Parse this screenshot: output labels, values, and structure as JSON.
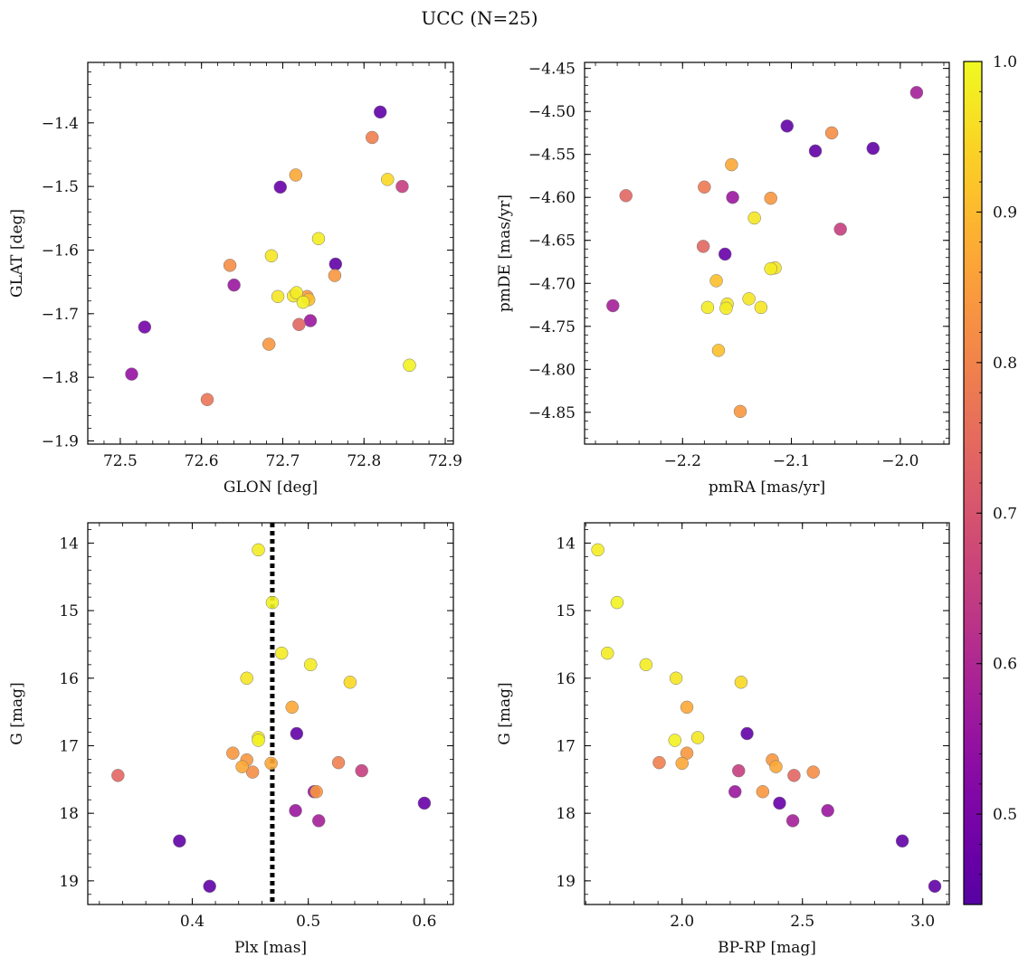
{
  "figure": {
    "title": "UCC (N=25)"
  },
  "colorbar": {
    "range": [
      0.44,
      1.0
    ],
    "ticks": [
      0.5,
      0.6,
      0.7,
      0.8,
      0.9,
      1.0
    ],
    "tick_labels": [
      "0.5",
      "0.6",
      "0.7",
      "0.8",
      "0.9",
      "1.0"
    ],
    "colormap": "plasma"
  },
  "chart_data": [
    {
      "type": "scatter",
      "id": "glon-glat",
      "xlabel": "GLON [deg]",
      "ylabel": "GLAT [deg]",
      "xlim": [
        72.46,
        72.91
      ],
      "ylim": [
        -1.905,
        -1.305
      ],
      "y_inverted": false,
      "xticks": [
        72.5,
        72.6,
        72.7,
        72.8,
        72.9
      ],
      "yticks": [
        -1.9,
        -1.8,
        -1.7,
        -1.6,
        -1.5,
        -1.4
      ],
      "xtick_labels": [
        "72.5",
        "72.6",
        "72.7",
        "72.8",
        "72.9"
      ],
      "ytick_labels": [
        "−1.9",
        "−1.8",
        "−1.7",
        "−1.6",
        "−1.5",
        "−1.4"
      ],
      "points": [
        {
          "x": 72.82,
          "y": -1.383,
          "c": 0.46
        },
        {
          "x": 72.81,
          "y": -1.423,
          "c": 0.79
        },
        {
          "x": 72.716,
          "y": -1.482,
          "c": 0.87
        },
        {
          "x": 72.829,
          "y": -1.489,
          "c": 0.95
        },
        {
          "x": 72.697,
          "y": -1.501,
          "c": 0.47
        },
        {
          "x": 72.847,
          "y": -1.5,
          "c": 0.65
        },
        {
          "x": 72.744,
          "y": -1.582,
          "c": 0.98
        },
        {
          "x": 72.686,
          "y": -1.609,
          "c": 0.97
        },
        {
          "x": 72.635,
          "y": -1.624,
          "c": 0.82
        },
        {
          "x": 72.765,
          "y": -1.622,
          "c": 0.46
        },
        {
          "x": 72.764,
          "y": -1.64,
          "c": 0.84
        },
        {
          "x": 72.64,
          "y": -1.655,
          "c": 0.56
        },
        {
          "x": 72.717,
          "y": -1.667,
          "c": 0.98
        },
        {
          "x": 72.694,
          "y": -1.673,
          "c": 0.97
        },
        {
          "x": 72.713,
          "y": -1.672,
          "c": 0.97
        },
        {
          "x": 72.73,
          "y": -1.673,
          "c": 0.84
        },
        {
          "x": 72.732,
          "y": -1.678,
          "c": 0.91
        },
        {
          "x": 72.725,
          "y": -1.682,
          "c": 0.99
        },
        {
          "x": 72.734,
          "y": -1.711,
          "c": 0.56
        },
        {
          "x": 72.72,
          "y": -1.717,
          "c": 0.74
        },
        {
          "x": 72.53,
          "y": -1.721,
          "c": 0.49
        },
        {
          "x": 72.683,
          "y": -1.748,
          "c": 0.84
        },
        {
          "x": 72.856,
          "y": -1.781,
          "c": 0.99
        },
        {
          "x": 72.514,
          "y": -1.795,
          "c": 0.55
        },
        {
          "x": 72.607,
          "y": -1.835,
          "c": 0.77
        }
      ]
    },
    {
      "type": "scatter",
      "id": "pmra-pmde",
      "xlabel": "pmRA [mas/yr]",
      "ylabel": "pmDE [mas/yr]",
      "xlim": [
        -2.29,
        -1.955
      ],
      "ylim": [
        -4.887,
        -4.443
      ],
      "y_inverted": false,
      "xticks": [
        -2.2,
        -2.1,
        -2.0
      ],
      "yticks": [
        -4.85,
        -4.8,
        -4.75,
        -4.7,
        -4.65,
        -4.6,
        -4.55,
        -4.5,
        -4.45
      ],
      "xtick_labels": [
        "−2.2",
        "−2.1",
        "−2.0"
      ],
      "ytick_labels": [
        "−4.85",
        "−4.80",
        "−4.75",
        "−4.70",
        "−4.65",
        "−4.60",
        "−4.55",
        "−4.50",
        "−4.45"
      ],
      "points": [
        {
          "x": -1.985,
          "y": -4.478,
          "c": 0.58
        },
        {
          "x": -2.104,
          "y": -4.517,
          "c": 0.46
        },
        {
          "x": -2.063,
          "y": -4.525,
          "c": 0.82
        },
        {
          "x": -2.025,
          "y": -4.543,
          "c": 0.46
        },
        {
          "x": -2.078,
          "y": -4.546,
          "c": 0.46
        },
        {
          "x": -2.155,
          "y": -4.562,
          "c": 0.87
        },
        {
          "x": -2.18,
          "y": -4.588,
          "c": 0.78
        },
        {
          "x": -2.252,
          "y": -4.598,
          "c": 0.74
        },
        {
          "x": -2.154,
          "y": -4.6,
          "c": 0.56
        },
        {
          "x": -2.119,
          "y": -4.601,
          "c": 0.84
        },
        {
          "x": -2.134,
          "y": -4.624,
          "c": 0.97
        },
        {
          "x": -2.055,
          "y": -4.637,
          "c": 0.65
        },
        {
          "x": -2.181,
          "y": -4.657,
          "c": 0.74
        },
        {
          "x": -2.161,
          "y": -4.666,
          "c": 0.47
        },
        {
          "x": -2.115,
          "y": -4.682,
          "c": 0.97
        },
        {
          "x": -2.119,
          "y": -4.683,
          "c": 0.98
        },
        {
          "x": -2.169,
          "y": -4.697,
          "c": 0.91
        },
        {
          "x": -2.139,
          "y": -4.718,
          "c": 0.97
        },
        {
          "x": -2.159,
          "y": -4.724,
          "c": 0.97
        },
        {
          "x": -2.264,
          "y": -4.726,
          "c": 0.58
        },
        {
          "x": -2.177,
          "y": -4.728,
          "c": 0.98
        },
        {
          "x": -2.128,
          "y": -4.728,
          "c": 0.97
        },
        {
          "x": -2.16,
          "y": -4.729,
          "c": 0.98
        },
        {
          "x": -2.167,
          "y": -4.778,
          "c": 0.91
        },
        {
          "x": -2.147,
          "y": -4.849,
          "c": 0.84
        }
      ]
    },
    {
      "type": "scatter",
      "id": "plx-g",
      "xlabel": "Plx [mas]",
      "ylabel": "G [mag]",
      "xlim": [
        0.31,
        0.625
      ],
      "ylim": [
        13.7,
        19.35
      ],
      "y_inverted": true,
      "xticks": [
        0.4,
        0.5,
        0.6
      ],
      "yticks": [
        14,
        15,
        16,
        17,
        18,
        19
      ],
      "xtick_labels": [
        "0.4",
        "0.5",
        "0.6"
      ],
      "ytick_labels": [
        "14",
        "15",
        "16",
        "17",
        "18",
        "19"
      ],
      "vline": {
        "x": 0.469,
        "style": "dotted"
      },
      "points": [
        {
          "x": 0.457,
          "y": 14.1,
          "c": 0.98
        },
        {
          "x": 0.469,
          "y": 14.88,
          "c": 0.99
        },
        {
          "x": 0.477,
          "y": 15.63,
          "c": 0.98
        },
        {
          "x": 0.502,
          "y": 15.8,
          "c": 0.98
        },
        {
          "x": 0.447,
          "y": 16.0,
          "c": 0.97
        },
        {
          "x": 0.536,
          "y": 16.06,
          "c": 0.95
        },
        {
          "x": 0.486,
          "y": 16.43,
          "c": 0.87
        },
        {
          "x": 0.49,
          "y": 16.82,
          "c": 0.46
        },
        {
          "x": 0.457,
          "y": 16.88,
          "c": 0.97
        },
        {
          "x": 0.457,
          "y": 16.92,
          "c": 0.99
        },
        {
          "x": 0.435,
          "y": 17.11,
          "c": 0.84
        },
        {
          "x": 0.447,
          "y": 17.21,
          "c": 0.84
        },
        {
          "x": 0.526,
          "y": 17.25,
          "c": 0.79
        },
        {
          "x": 0.468,
          "y": 17.26,
          "c": 0.87
        },
        {
          "x": 0.443,
          "y": 17.31,
          "c": 0.87
        },
        {
          "x": 0.546,
          "y": 17.37,
          "c": 0.65
        },
        {
          "x": 0.452,
          "y": 17.39,
          "c": 0.82
        },
        {
          "x": 0.336,
          "y": 17.44,
          "c": 0.74
        },
        {
          "x": 0.505,
          "y": 17.68,
          "c": 0.56
        },
        {
          "x": 0.507,
          "y": 17.68,
          "c": 0.84
        },
        {
          "x": 0.6,
          "y": 17.85,
          "c": 0.47
        },
        {
          "x": 0.489,
          "y": 17.96,
          "c": 0.56
        },
        {
          "x": 0.509,
          "y": 18.11,
          "c": 0.58
        },
        {
          "x": 0.389,
          "y": 18.41,
          "c": 0.46
        },
        {
          "x": 0.415,
          "y": 19.08,
          "c": 0.46
        }
      ]
    },
    {
      "type": "scatter",
      "id": "bprp-g",
      "xlabel": "BP-RP [mag]",
      "ylabel": "G [mag]",
      "xlim": [
        1.595,
        3.11
      ],
      "ylim": [
        13.7,
        19.35
      ],
      "y_inverted": true,
      "xticks": [
        2.0,
        2.5,
        3.0
      ],
      "yticks": [
        14,
        15,
        16,
        17,
        18,
        19
      ],
      "xtick_labels": [
        "2.0",
        "2.5",
        "3.0"
      ],
      "ytick_labels": [
        "14",
        "15",
        "16",
        "17",
        "18",
        "19"
      ],
      "points": [
        {
          "x": 1.65,
          "y": 14.1,
          "c": 0.98
        },
        {
          "x": 1.73,
          "y": 14.88,
          "c": 0.99
        },
        {
          "x": 1.69,
          "y": 15.63,
          "c": 0.98
        },
        {
          "x": 1.85,
          "y": 15.8,
          "c": 0.98
        },
        {
          "x": 1.975,
          "y": 16.0,
          "c": 0.97
        },
        {
          "x": 2.245,
          "y": 16.06,
          "c": 0.95
        },
        {
          "x": 2.02,
          "y": 16.43,
          "c": 0.87
        },
        {
          "x": 2.27,
          "y": 16.82,
          "c": 0.46
        },
        {
          "x": 2.065,
          "y": 16.88,
          "c": 0.97
        },
        {
          "x": 1.97,
          "y": 16.92,
          "c": 0.99
        },
        {
          "x": 2.02,
          "y": 17.11,
          "c": 0.84
        },
        {
          "x": 2.375,
          "y": 17.21,
          "c": 0.84
        },
        {
          "x": 1.905,
          "y": 17.25,
          "c": 0.79
        },
        {
          "x": 2.0,
          "y": 17.26,
          "c": 0.87
        },
        {
          "x": 2.39,
          "y": 17.31,
          "c": 0.87
        },
        {
          "x": 2.235,
          "y": 17.37,
          "c": 0.65
        },
        {
          "x": 2.545,
          "y": 17.39,
          "c": 0.82
        },
        {
          "x": 2.465,
          "y": 17.44,
          "c": 0.74
        },
        {
          "x": 2.22,
          "y": 17.68,
          "c": 0.56
        },
        {
          "x": 2.335,
          "y": 17.68,
          "c": 0.84
        },
        {
          "x": 2.405,
          "y": 17.85,
          "c": 0.47
        },
        {
          "x": 2.605,
          "y": 17.96,
          "c": 0.56
        },
        {
          "x": 2.46,
          "y": 18.11,
          "c": 0.58
        },
        {
          "x": 2.915,
          "y": 18.41,
          "c": 0.46
        },
        {
          "x": 3.05,
          "y": 19.08,
          "c": 0.46
        }
      ]
    }
  ]
}
